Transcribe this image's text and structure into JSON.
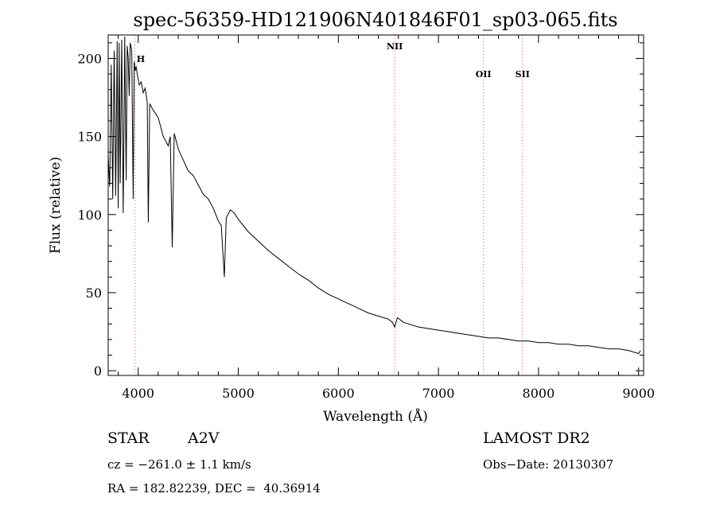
{
  "chart_data": {
    "type": "line",
    "title": "spec-56359-HD121906N401846F01_sp03-065.fits",
    "xlabel": "Wavelength (Å)",
    "ylabel": "Flux (relative)",
    "xlim": [
      3700,
      9050
    ],
    "ylim": [
      -3,
      215
    ],
    "xticks": [
      4000,
      5000,
      6000,
      7000,
      8000,
      9000
    ],
    "yticks": [
      0,
      50,
      100,
      150,
      200
    ],
    "grid": false,
    "line_color": "#000000",
    "marker_color": "#e05050",
    "series": [
      {
        "x": [
          3700,
          3715,
          3730,
          3745,
          3760,
          3775,
          3790,
          3800,
          3810,
          3820,
          3835,
          3850,
          3865,
          3880,
          3890,
          3900,
          3910,
          3920,
          3935,
          3950,
          3960,
          3970,
          3980,
          3990,
          4010,
          4030,
          4050,
          4070,
          4090,
          4101,
          4115,
          4140,
          4170,
          4200,
          4250,
          4300,
          4320,
          4340,
          4360,
          4400,
          4450,
          4500,
          4550,
          4600,
          4650,
          4700,
          4750,
          4800,
          4830,
          4861,
          4880,
          4920,
          4960,
          5000,
          5050,
          5100,
          5150,
          5200,
          5300,
          5400,
          5500,
          5600,
          5700,
          5800,
          5900,
          6000,
          6100,
          6200,
          6300,
          6400,
          6500,
          6540,
          6563,
          6590,
          6650,
          6700,
          6800,
          6900,
          7000,
          7100,
          7200,
          7300,
          7400,
          7500,
          7600,
          7700,
          7800,
          7900,
          8000,
          8100,
          8200,
          8300,
          8400,
          8500,
          8600,
          8700,
          8800,
          8900,
          8950,
          9000,
          9020
        ],
        "y": [
          138,
          118,
          196,
          110,
          205,
          112,
          211,
          104,
          210,
          120,
          212,
          101,
          214,
          122,
          208,
          200,
          176,
          210,
          205,
          110,
          198,
          192,
          195,
          190,
          183,
          185,
          178,
          181,
          172,
          95,
          171,
          168,
          165,
          162,
          150,
          144,
          150,
          79,
          152,
          142,
          135,
          128,
          125,
          119,
          113,
          110,
          104,
          96,
          93,
          60,
          98,
          103,
          101,
          97,
          93,
          89,
          86,
          83,
          77,
          72,
          67,
          62,
          58,
          53,
          49,
          46,
          43,
          40,
          37,
          35,
          33,
          31,
          28,
          34,
          31,
          30,
          28,
          27,
          26,
          25,
          24,
          23,
          22,
          21,
          21,
          20,
          19,
          19,
          18,
          18,
          17,
          17,
          16,
          16,
          15,
          14,
          14,
          13,
          12,
          11,
          13
        ]
      }
    ],
    "markers": [
      {
        "label": "H",
        "x": 3968
      },
      {
        "label": "NII",
        "x": 6563
      },
      {
        "label": "OII",
        "x": 7450
      },
      {
        "label": "SII",
        "x": 7840
      }
    ]
  },
  "info": {
    "object_type": "STAR",
    "subclass": "A2V",
    "cz": "cz = −261.0 ± 1.1 km/s",
    "coords": "RA = 182.82239, DEC =  40.36914",
    "survey": "LAMOST DR2",
    "obs_date": "Obs−Date: 20130307"
  }
}
